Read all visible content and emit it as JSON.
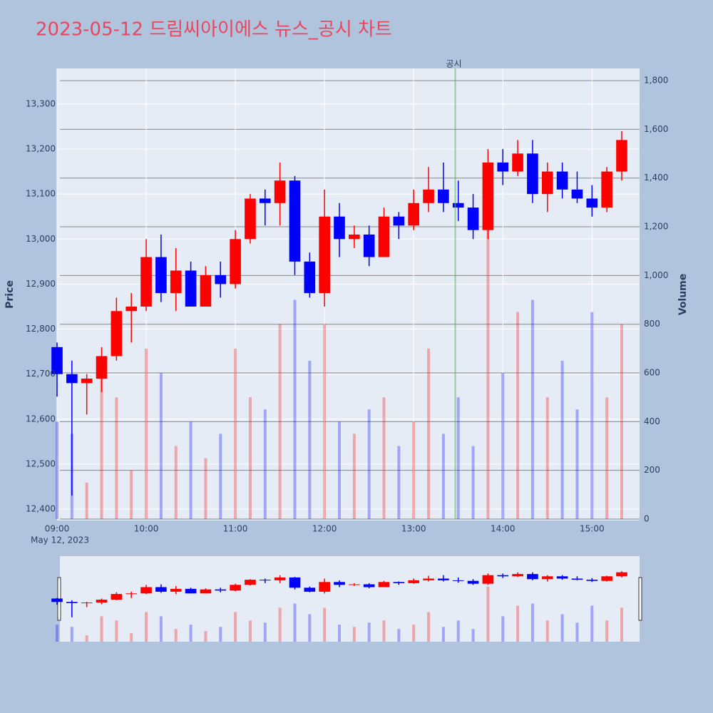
{
  "chart_data": {
    "type": "candlestick",
    "title": "2023-05-12 드림씨아이에스 뉴스_공시 차트",
    "ylabel": "Price",
    "y2label": "Volume",
    "xsublabel": "May 12, 2023",
    "x": [
      "09:00",
      "09:10",
      "09:20",
      "09:30",
      "09:40",
      "09:50",
      "10:00",
      "10:10",
      "10:20",
      "10:30",
      "10:40",
      "10:50",
      "11:00",
      "11:10",
      "11:20",
      "11:30",
      "11:40",
      "11:50",
      "12:00",
      "12:10",
      "12:20",
      "12:30",
      "12:40",
      "12:50",
      "13:00",
      "13:10",
      "13:20",
      "13:30",
      "13:40",
      "13:50",
      "14:00",
      "14:10",
      "14:20",
      "14:30",
      "14:40",
      "14:50",
      "15:00",
      "15:10",
      "15:20"
    ],
    "open": [
      12760,
      12700,
      12680,
      12690,
      12740,
      12840,
      12850,
      12960,
      12880,
      12930,
      12850,
      12920,
      12900,
      13000,
      13090,
      13080,
      13130,
      12950,
      12880,
      13050,
      13000,
      13010,
      12960,
      13050,
      13030,
      13080,
      13110,
      13080,
      13070,
      13020,
      13170,
      13150,
      13190,
      13100,
      13150,
      13110,
      13090,
      13070,
      13150
    ],
    "high": [
      12770,
      12730,
      12700,
      12760,
      12870,
      12880,
      13000,
      13010,
      12980,
      12950,
      12940,
      12950,
      13020,
      13100,
      13110,
      13170,
      13140,
      12970,
      13110,
      13080,
      13030,
      13030,
      13070,
      13060,
      13110,
      13160,
      13170,
      13130,
      13100,
      13200,
      13200,
      13220,
      13220,
      13170,
      13170,
      13150,
      13120,
      13160,
      13240
    ],
    "low": [
      12650,
      12430,
      12610,
      12660,
      12730,
      12770,
      12840,
      12860,
      12840,
      12850,
      12850,
      12870,
      12890,
      12990,
      13030,
      13030,
      12920,
      12870,
      12850,
      12960,
      12980,
      12940,
      12960,
      13000,
      13020,
      13060,
      13060,
      13040,
      13000,
      13000,
      13120,
      13140,
      13080,
      13060,
      13090,
      13080,
      13050,
      13060,
      13130
    ],
    "close": [
      12700,
      12680,
      12690,
      12740,
      12840,
      12850,
      12960,
      12880,
      12930,
      12850,
      12920,
      12900,
      13000,
      13090,
      13080,
      13130,
      12950,
      12880,
      13050,
      13000,
      13010,
      12960,
      13050,
      13030,
      13080,
      13110,
      13080,
      13070,
      13020,
      13170,
      13150,
      13190,
      13100,
      13150,
      13110,
      13090,
      13070,
      13150,
      13220
    ],
    "volume": [
      400,
      350,
      150,
      600,
      500,
      200,
      700,
      600,
      300,
      400,
      250,
      350,
      700,
      500,
      450,
      800,
      900,
      650,
      800,
      400,
      350,
      450,
      500,
      300,
      400,
      700,
      350,
      500,
      300,
      1300,
      600,
      850,
      900,
      500,
      650,
      450,
      850,
      500,
      800
    ],
    "increasing_color": "#ff0000",
    "decreasing_color": "#0000ff",
    "xlim": [
      "09:00",
      "15:32"
    ],
    "xticks": [
      "09:00",
      "10:00",
      "11:00",
      "12:00",
      "13:00",
      "14:00",
      "15:00"
    ],
    "ylim": [
      12378,
      13379
    ],
    "yticks": [
      {
        "value": 12400,
        "label": "12,400"
      },
      {
        "value": 12500,
        "label": "12,500"
      },
      {
        "value": 12600,
        "label": "12,600"
      },
      {
        "value": 12700,
        "label": "12,700"
      },
      {
        "value": 12800,
        "label": "12,800"
      },
      {
        "value": 12900,
        "label": "12,900"
      },
      {
        "value": 13000,
        "label": "13,000"
      },
      {
        "value": 13100,
        "label": "13,100"
      },
      {
        "value": 13200,
        "label": "13,200"
      },
      {
        "value": 13300,
        "label": "13,300"
      }
    ],
    "y2lim": [
      0,
      1850
    ],
    "y2ticks": [
      0,
      200,
      400,
      600,
      800,
      {
        "value": 1000,
        "label": "1,000"
      },
      {
        "value": 1200,
        "label": "1,200"
      },
      {
        "value": 1400,
        "label": "1,400"
      },
      {
        "value": 1600,
        "label": "1,600"
      },
      {
        "value": 1800,
        "label": "1,800"
      }
    ],
    "annotation": {
      "x": "13:28",
      "text": "공시"
    },
    "grid": true
  }
}
